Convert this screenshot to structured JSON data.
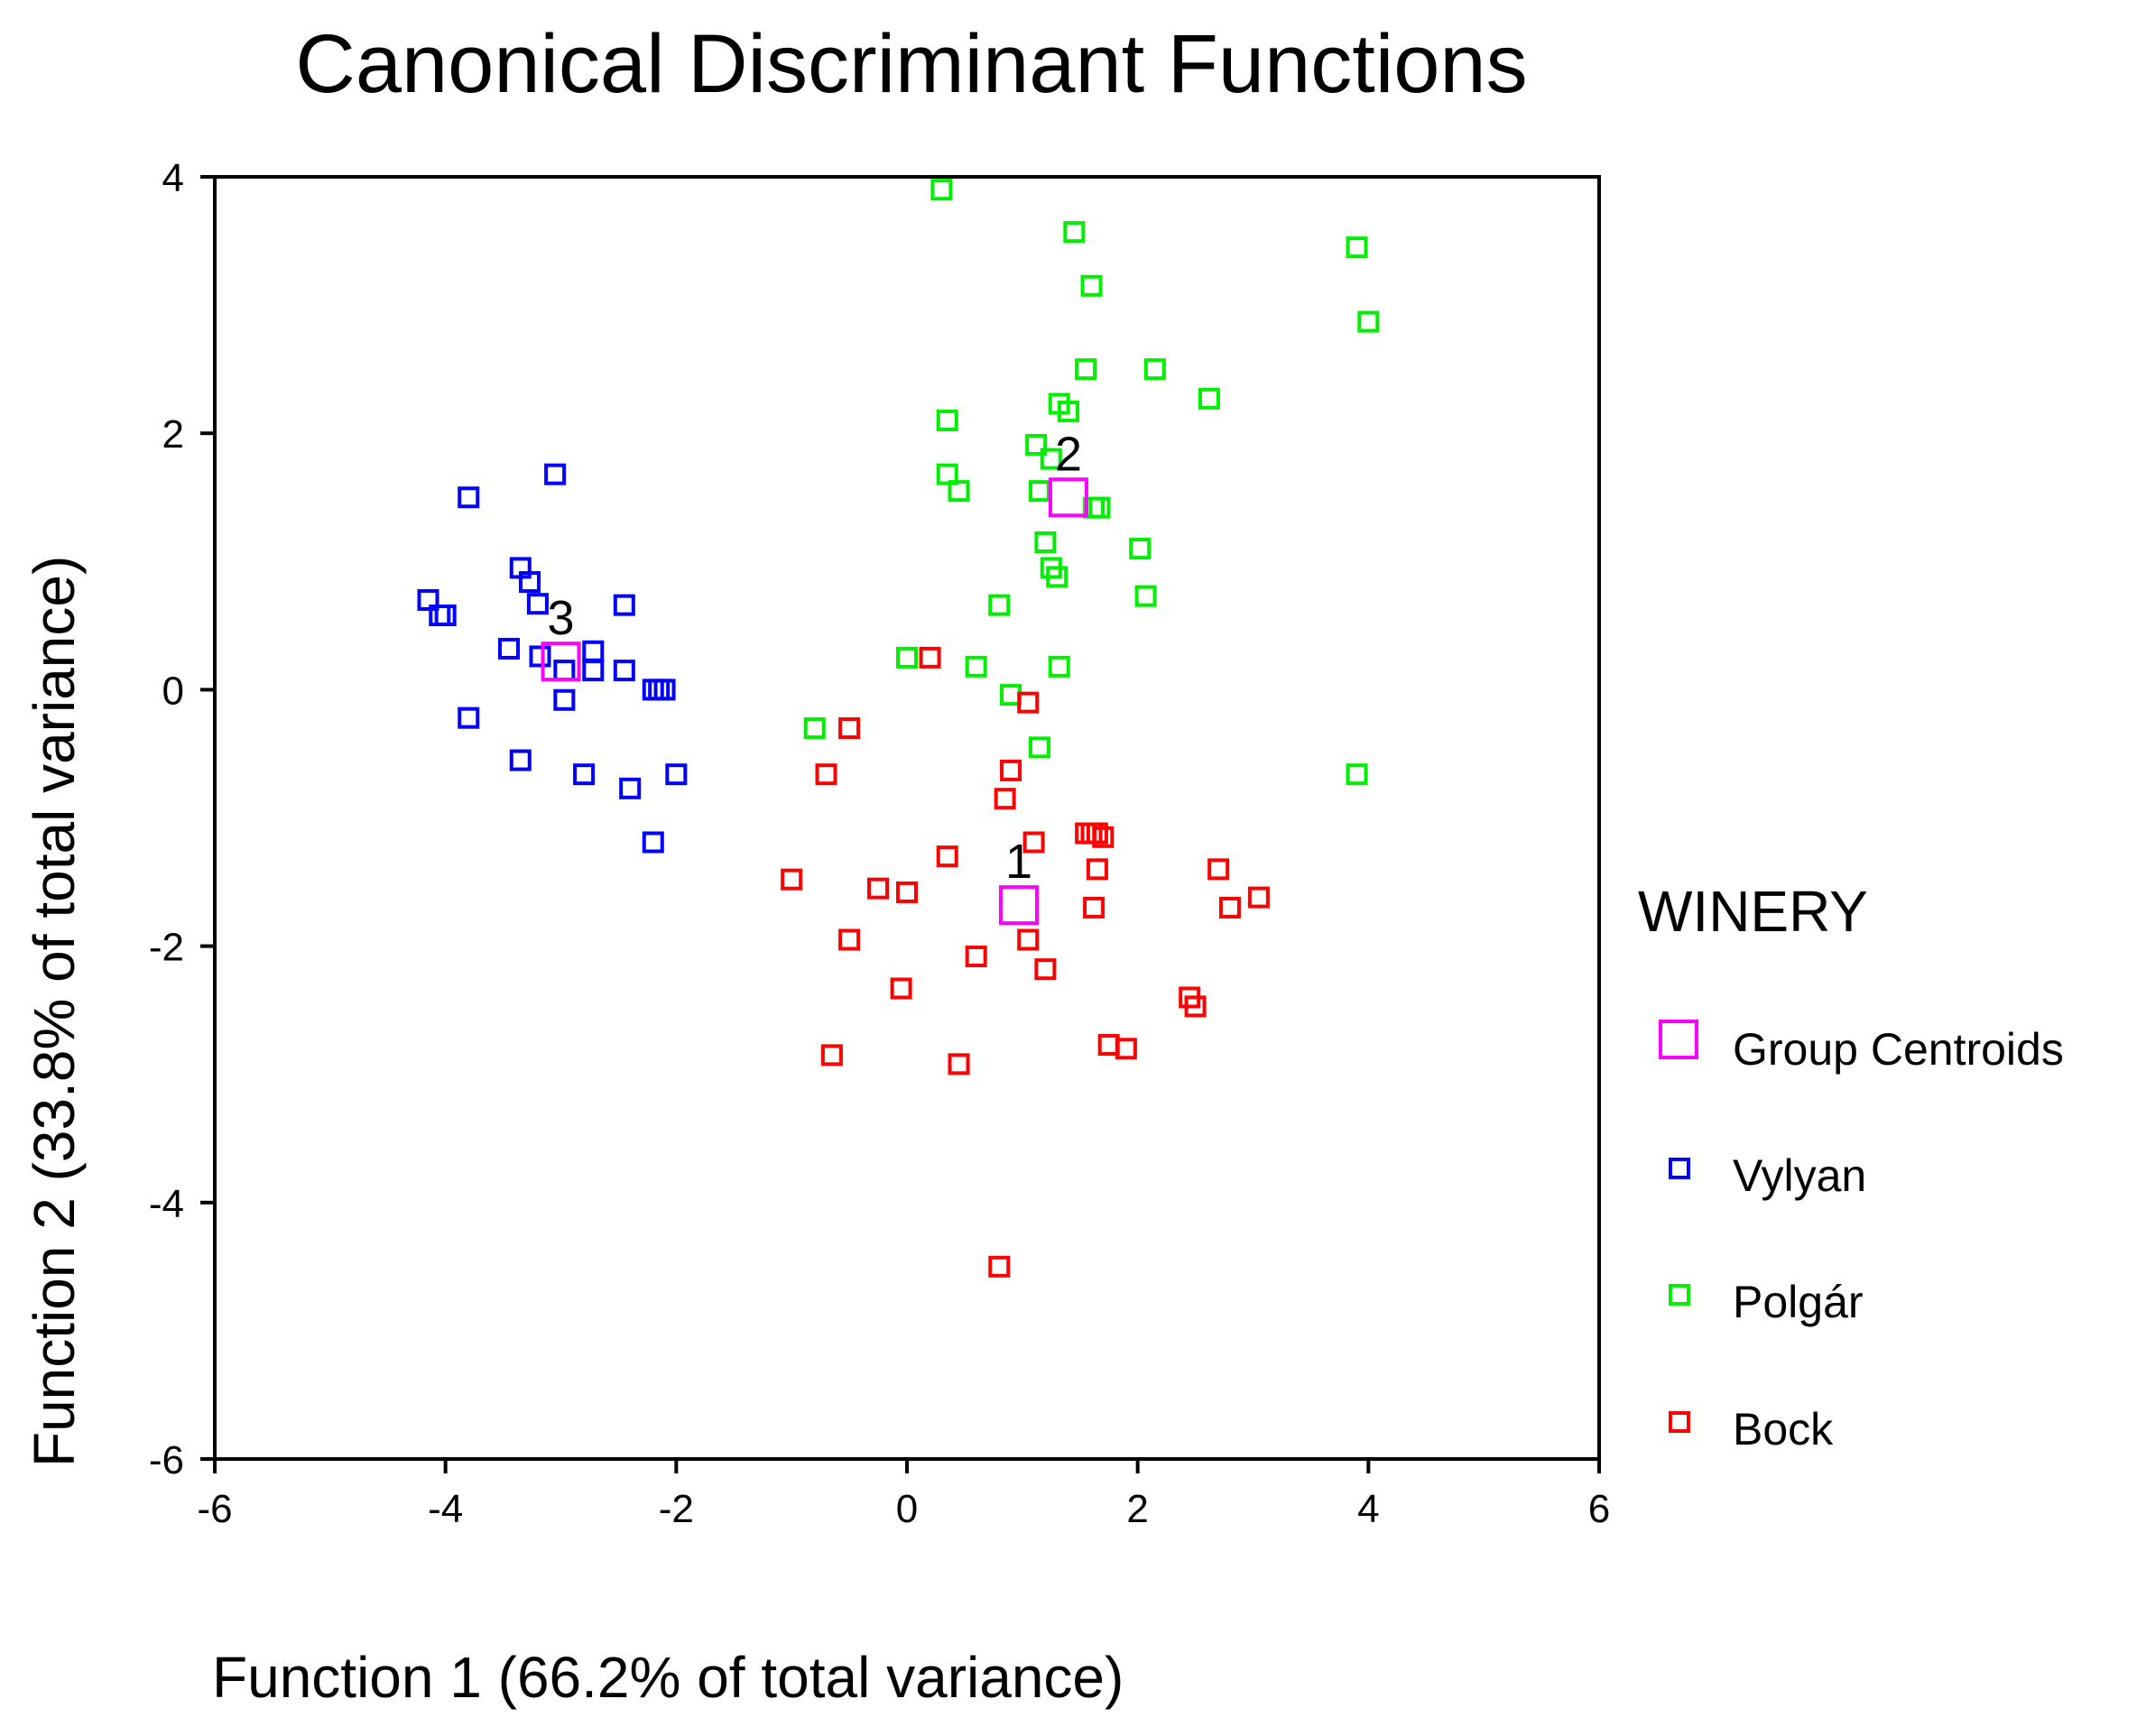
{
  "chart_data": {
    "type": "scatter",
    "title": "Canonical Discriminant Functions",
    "xlabel": "Function 1 (66.2% of total variance)",
    "ylabel": "Function 2 (33.8% of total variance)",
    "xlim": [
      -6,
      6
    ],
    "ylim": [
      -6,
      4
    ],
    "xticks": [
      -6,
      -4,
      -2,
      0,
      2,
      4,
      6
    ],
    "yticks": [
      -6,
      -4,
      -2,
      0,
      2,
      4
    ],
    "grid": false,
    "legend": {
      "title": "WINERY",
      "position": "right",
      "entries": [
        "Group Centroids",
        "Vylyan",
        "Polgár",
        "Bock"
      ]
    },
    "colors": {
      "Group Centroids": "#ff00ff",
      "Vylyan": "#0000ff",
      "Polgár": "#00ee00",
      "Bock": "#ff0000"
    },
    "centroids": [
      {
        "label": "1",
        "x": 0.97,
        "y": -1.68
      },
      {
        "label": "2",
        "x": 1.4,
        "y": 1.5
      },
      {
        "label": "3",
        "x": -3.0,
        "y": 0.22
      }
    ],
    "series": [
      {
        "name": "Vylyan",
        "points": [
          [
            -3.8,
            1.5
          ],
          [
            -3.05,
            1.68
          ],
          [
            -3.35,
            0.95
          ],
          [
            -3.27,
            0.84
          ],
          [
            -3.2,
            0.67
          ],
          [
            -4.15,
            0.7
          ],
          [
            -4.05,
            0.58
          ],
          [
            -4.0,
            0.58
          ],
          [
            -2.45,
            0.66
          ],
          [
            -3.45,
            0.32
          ],
          [
            -3.18,
            0.26
          ],
          [
            -2.72,
            0.3
          ],
          [
            -2.72,
            0.15
          ],
          [
            -2.97,
            0.15
          ],
          [
            -2.45,
            0.15
          ],
          [
            -2.97,
            -0.08
          ],
          [
            -2.2,
            0.0
          ],
          [
            -2.15,
            0.0
          ],
          [
            -2.1,
            0.0
          ],
          [
            -3.8,
            -0.22
          ],
          [
            -3.35,
            -0.55
          ],
          [
            -2.8,
            -0.66
          ],
          [
            -2.4,
            -0.77
          ],
          [
            -2.0,
            -0.66
          ],
          [
            -2.2,
            -1.19
          ]
        ]
      },
      {
        "name": "Polgár",
        "points": [
          [
            0.3,
            3.9
          ],
          [
            1.45,
            3.57
          ],
          [
            1.6,
            3.15
          ],
          [
            3.9,
            3.45
          ],
          [
            4.0,
            2.87
          ],
          [
            1.55,
            2.5
          ],
          [
            2.15,
            2.5
          ],
          [
            2.62,
            2.27
          ],
          [
            1.32,
            2.23
          ],
          [
            1.4,
            2.17
          ],
          [
            0.35,
            2.1
          ],
          [
            1.12,
            1.91
          ],
          [
            1.25,
            1.8
          ],
          [
            0.35,
            1.68
          ],
          [
            0.45,
            1.55
          ],
          [
            1.15,
            1.55
          ],
          [
            1.62,
            1.42
          ],
          [
            1.67,
            1.42
          ],
          [
            1.2,
            1.15
          ],
          [
            2.02,
            1.1
          ],
          [
            1.25,
            0.95
          ],
          [
            1.3,
            0.88
          ],
          [
            2.07,
            0.73
          ],
          [
            0.8,
            0.66
          ],
          [
            0.0,
            0.25
          ],
          [
            0.6,
            0.18
          ],
          [
            1.32,
            0.18
          ],
          [
            0.9,
            -0.04
          ],
          [
            1.15,
            -0.45
          ],
          [
            -0.8,
            -0.3
          ],
          [
            3.9,
            -0.66
          ]
        ]
      },
      {
        "name": "Bock",
        "points": [
          [
            0.2,
            0.25
          ],
          [
            1.05,
            -0.1
          ],
          [
            -0.5,
            -0.3
          ],
          [
            0.9,
            -0.63
          ],
          [
            -0.7,
            -0.66
          ],
          [
            0.85,
            -0.85
          ],
          [
            1.55,
            -1.12
          ],
          [
            1.6,
            -1.12
          ],
          [
            1.65,
            -1.12
          ],
          [
            1.7,
            -1.15
          ],
          [
            1.1,
            -1.19
          ],
          [
            0.35,
            -1.3
          ],
          [
            1.65,
            -1.4
          ],
          [
            2.7,
            -1.4
          ],
          [
            -1.0,
            -1.48
          ],
          [
            -0.25,
            -1.55
          ],
          [
            0.0,
            -1.58
          ],
          [
            3.05,
            -1.62
          ],
          [
            1.62,
            -1.7
          ],
          [
            2.8,
            -1.7
          ],
          [
            -0.5,
            -1.95
          ],
          [
            1.05,
            -1.95
          ],
          [
            0.6,
            -2.08
          ],
          [
            1.2,
            -2.18
          ],
          [
            -0.05,
            -2.33
          ],
          [
            2.45,
            -2.4
          ],
          [
            2.5,
            -2.47
          ],
          [
            1.75,
            -2.77
          ],
          [
            1.9,
            -2.8
          ],
          [
            -0.65,
            -2.85
          ],
          [
            0.45,
            -2.92
          ],
          [
            0.8,
            -4.5
          ]
        ]
      }
    ]
  }
}
